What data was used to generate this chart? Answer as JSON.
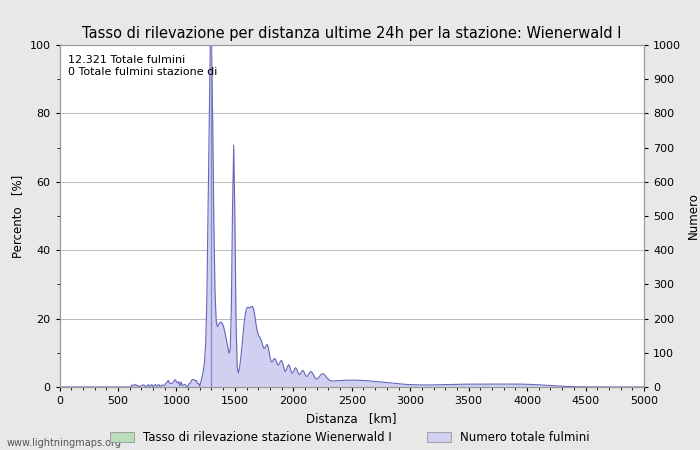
{
  "title": "Tasso di rilevazione per distanza ultime 24h per la stazione: Wienerwald I",
  "xlabel": "Distanza   [km]",
  "ylabel_left": "Percento   [%]",
  "ylabel_right": "Numero",
  "annotation_line1": "12.321 Totale fulmini",
  "annotation_line2": "0 Totale fulmini stazione di",
  "watermark": "www.lightningmaps.org",
  "legend_label1": "Tasso di rilevazione stazione Wienerwald I",
  "legend_label2": "Numero totale fulmini",
  "xlim": [
    0,
    5000
  ],
  "ylim_left": [
    0,
    100
  ],
  "ylim_right": [
    0,
    1000
  ],
  "xticks": [
    0,
    500,
    1000,
    1500,
    2000,
    2500,
    3000,
    3500,
    4000,
    4500,
    5000
  ],
  "yticks_left": [
    0,
    20,
    40,
    60,
    80,
    100
  ],
  "yticks_right": [
    0,
    100,
    200,
    300,
    400,
    500,
    600,
    700,
    800,
    900,
    1000
  ],
  "bg_color": "#e8e8e8",
  "plot_bg_color": "#ffffff",
  "grid_color": "#bbbbbb",
  "line_color": "#6666bb",
  "fill_blue_color": "#d0d0f0",
  "fill_green_color": "#bbddbb",
  "title_fontsize": 10.5,
  "label_fontsize": 8.5,
  "tick_fontsize": 8,
  "annotation_fontsize": 8,
  "vline_x": 1300,
  "vline_color": "#8888cc"
}
